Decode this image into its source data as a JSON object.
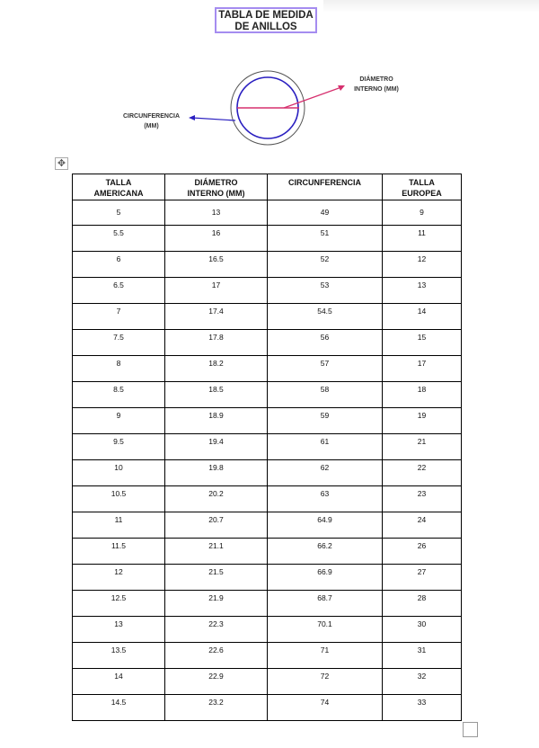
{
  "title": "TABLA DE MEDIDA DE ANILLOS",
  "diagram": {
    "label_diameter_1": "DIÁMETRO",
    "label_diameter_2": "INTERNO (MM)",
    "label_circ_1": "CIRCUNFERENCIA",
    "label_circ_2": "(MM)",
    "colors": {
      "diameter": "#d6306e",
      "circumference": "#2a1fc0",
      "outer": "#555555"
    }
  },
  "table": {
    "headers": [
      [
        "TALLA",
        "AMERICANA"
      ],
      [
        "DIÁMETRO",
        "INTERNO (MM)"
      ],
      [
        "CIRCUNFERENCIA",
        ""
      ],
      [
        "TALLA",
        "EUROPEA"
      ]
    ],
    "rows": [
      [
        "5",
        "13",
        "49",
        "9"
      ],
      [
        "5.5",
        "16",
        "51",
        "11"
      ],
      [
        "6",
        "16.5",
        "52",
        "12"
      ],
      [
        "6.5",
        "17",
        "53",
        "13"
      ],
      [
        "7",
        "17.4",
        "54.5",
        "14"
      ],
      [
        "7.5",
        "17.8",
        "56",
        "15"
      ],
      [
        "8",
        "18.2",
        "57",
        "17"
      ],
      [
        "8.5",
        "18.5",
        "58",
        "18"
      ],
      [
        "9",
        "18.9",
        "59",
        "19"
      ],
      [
        "9.5",
        "19.4",
        "61",
        "21"
      ],
      [
        "10",
        "19.8",
        "62",
        "22"
      ],
      [
        "10.5",
        "20.2",
        "63",
        "23"
      ],
      [
        "11",
        "20.7",
        "64.9",
        "24"
      ],
      [
        "11.5",
        "21.1",
        "66.2",
        "26"
      ],
      [
        "12",
        "21.5",
        "66.9",
        "27"
      ],
      [
        "12.5",
        "21.9",
        "68.7",
        "28"
      ],
      [
        "13",
        "22.3",
        "70.1",
        "30"
      ],
      [
        "13.5",
        "22.6",
        "71",
        "31"
      ],
      [
        "14",
        "22.9",
        "72",
        "32"
      ],
      [
        "14.5",
        "23.2",
        "74",
        "33"
      ]
    ]
  }
}
